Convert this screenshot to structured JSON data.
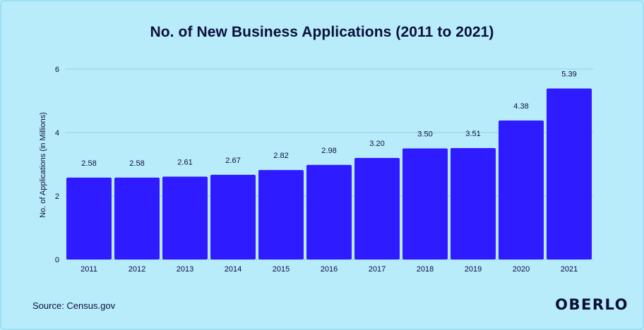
{
  "chart_data": {
    "type": "bar",
    "title": "No. of New Business Applications (2011 to 2021)",
    "xlabel": "",
    "ylabel": "No. of Applications (in Millions)",
    "ylim": [
      0,
      6
    ],
    "yticks": [
      0,
      2,
      4,
      6
    ],
    "grid": true,
    "categories": [
      "2011",
      "2012",
      "2013",
      "2014",
      "2015",
      "2016",
      "2017",
      "2018",
      "2019",
      "2020",
      "2021"
    ],
    "values": [
      2.58,
      2.58,
      2.61,
      2.67,
      2.82,
      2.98,
      3.2,
      3.5,
      3.51,
      4.38,
      5.39
    ],
    "value_labels": [
      "2.58",
      "2.58",
      "2.61",
      "2.67",
      "2.82",
      "2.98",
      "3.20",
      "3.50",
      "3.51",
      "4.38",
      "5.39"
    ],
    "colors": {
      "bar": "#2f1bff",
      "grid": "#8fcfe6",
      "background": "#b8ecfb",
      "text": "#0b0f3a"
    }
  },
  "source": "Source: Census.gov",
  "brand": "OBERLO"
}
